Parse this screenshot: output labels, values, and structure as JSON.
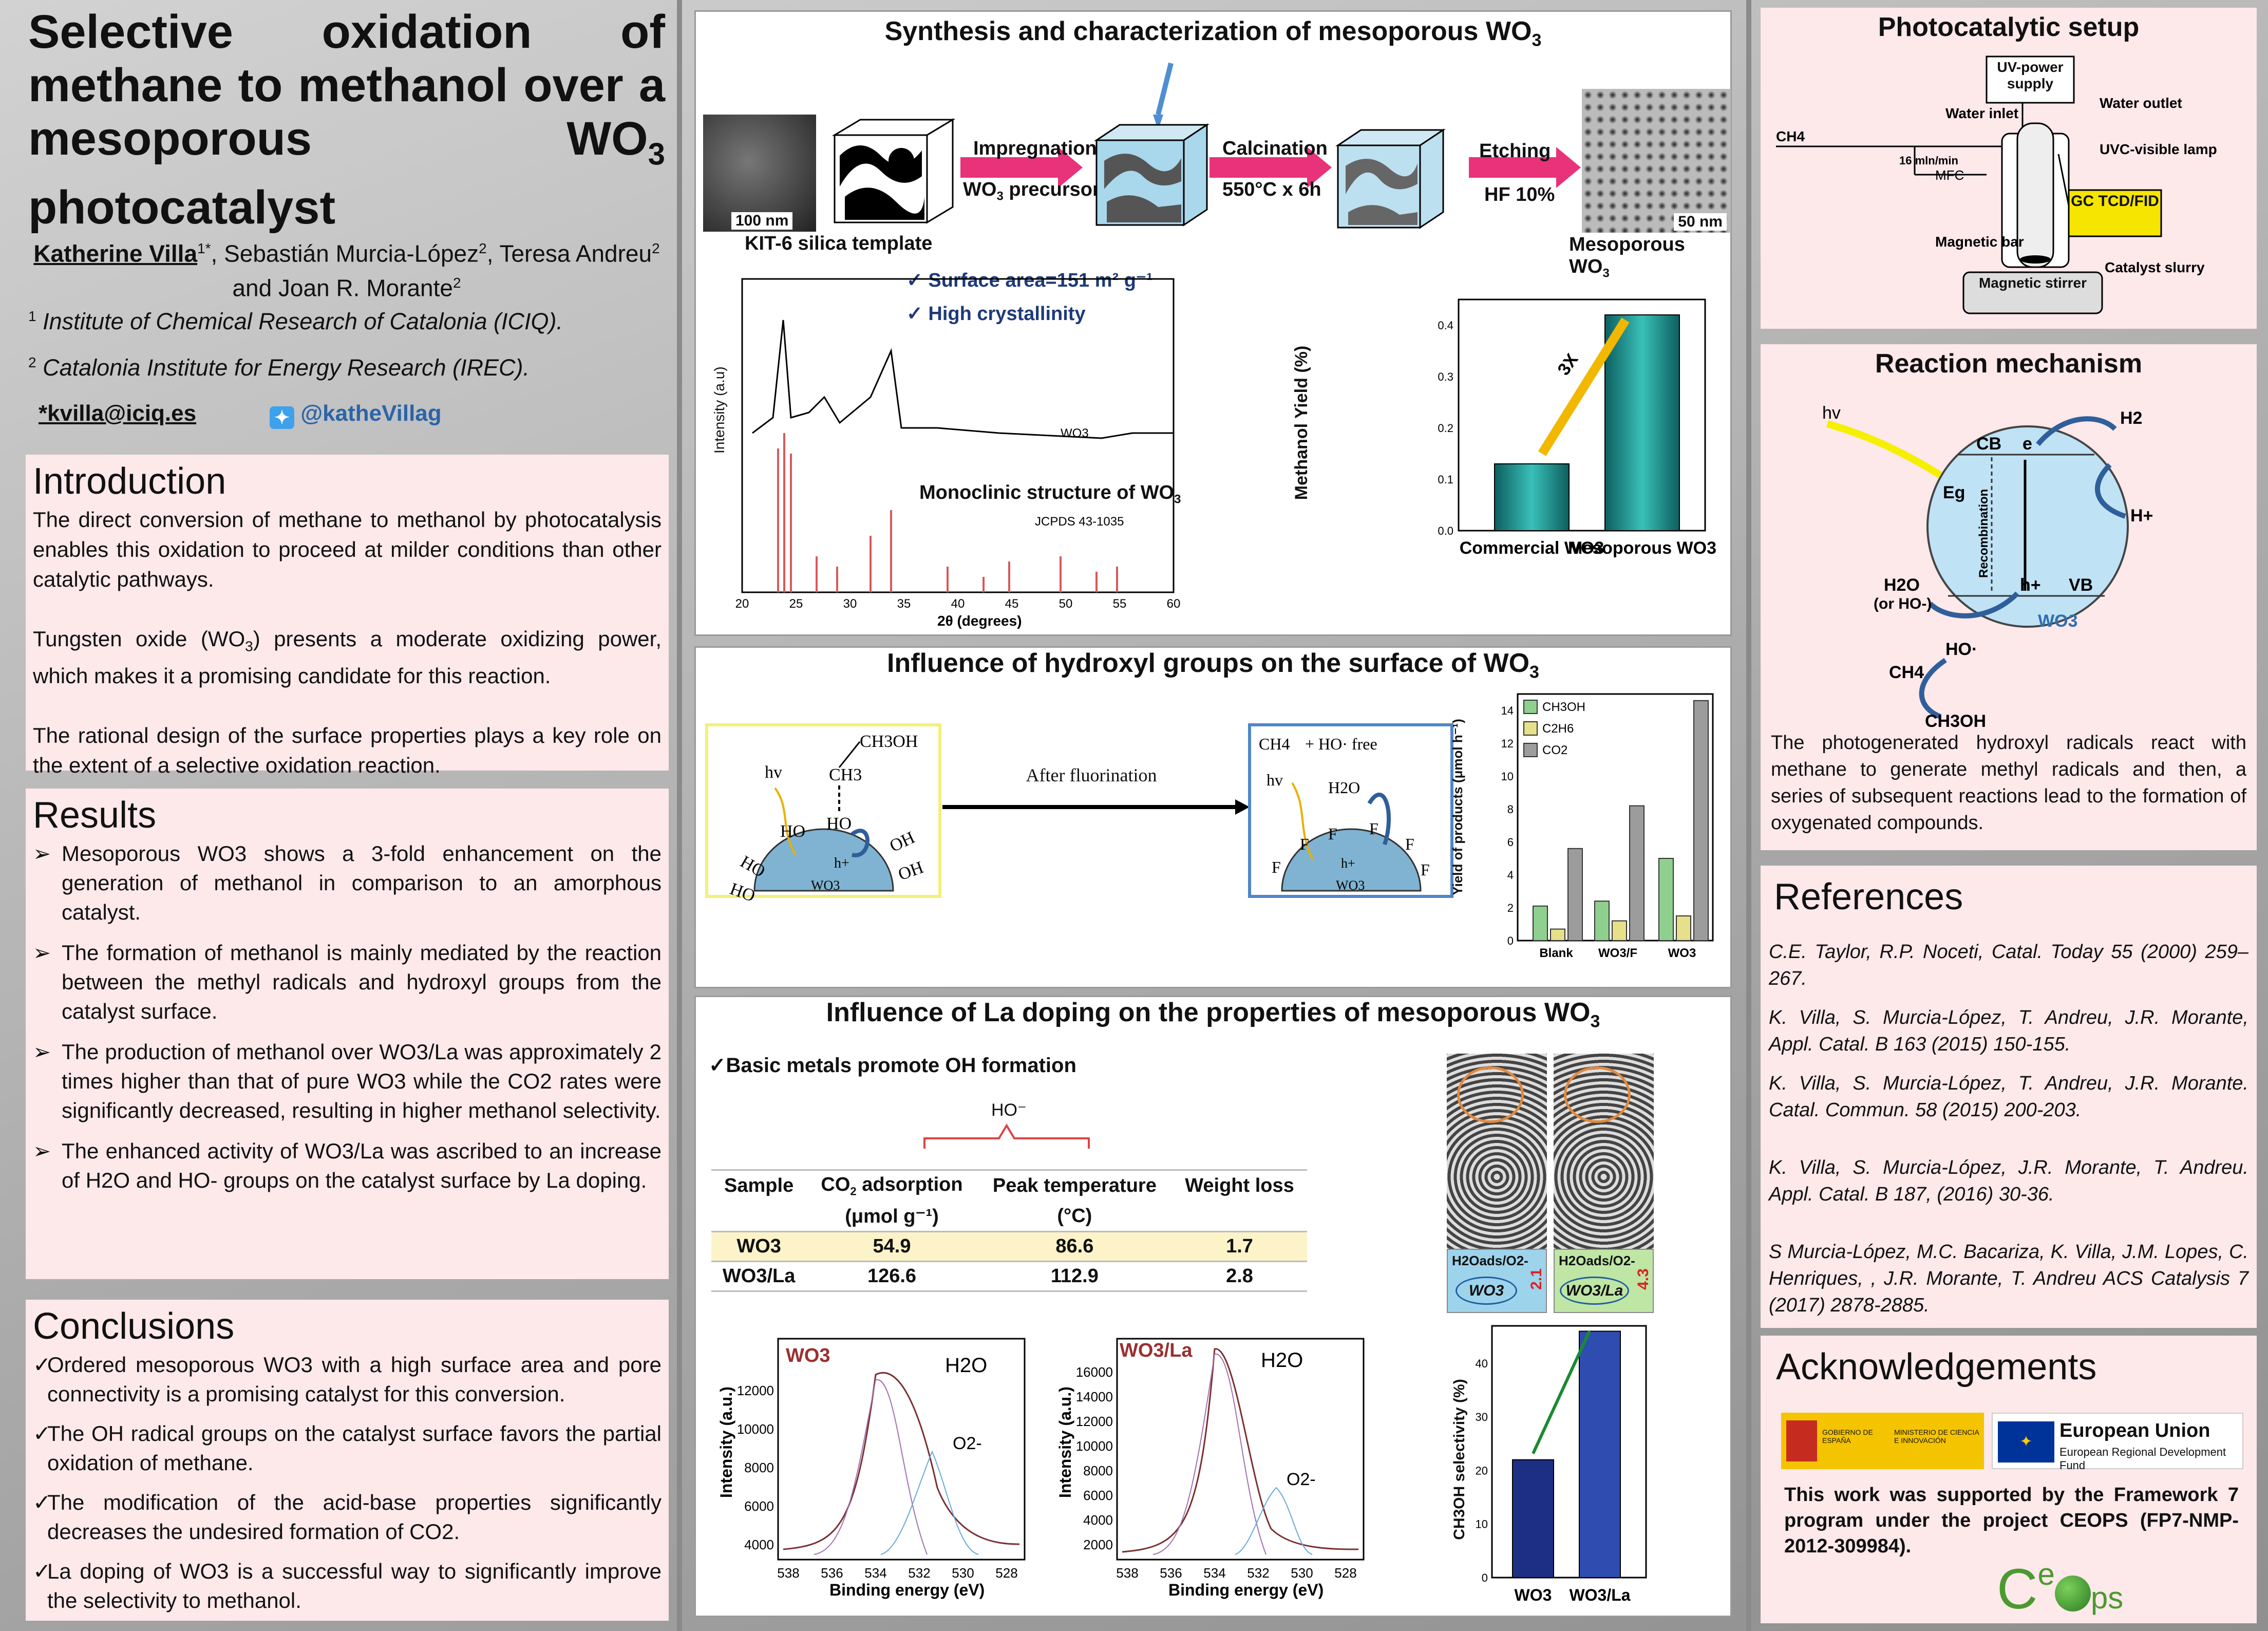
{
  "title": {
    "line1": "Selective oxidation of methane to methanol over a mesoporous WO",
    "sub": "3",
    "line2": " photocatalyst"
  },
  "authors": {
    "main": "Katherine Villa",
    "main_sup": "1*",
    "rest": ", Sebastián Murcia-López",
    "rest_sup": "2",
    "rest2": ", Teresa Andreu",
    "rest2_sup": "2",
    "rest3": " and Joan R. Morante",
    "rest3_sup": "2"
  },
  "affiliations": [
    {
      "num": "1",
      "text": "Institute of Chemical Research of Catalonia (ICIQ)."
    },
    {
      "num": "2",
      "text": "Catalonia Institute for Energy Research (IREC)."
    }
  ],
  "contact": {
    "email": "*kvilla@iciq.es",
    "twitter": "@katheVillag"
  },
  "introduction": {
    "heading": "Introduction",
    "p1": "The direct conversion of methane to methanol by photocatalysis enables this oxidation to proceed at milder conditions than other catalytic pathways.",
    "p2a": "Tungsten oxide (WO",
    "p2b": ") presents a moderate oxidizing power, which makes it a promising candidate for this reaction.",
    "p3": "The rational design of the surface properties plays a key role on the extent of a selective oxidation reaction."
  },
  "results": {
    "heading": "Results",
    "b1": "Mesoporous WO3 shows a 3-fold enhancement on the generation of methanol in comparison to an amorphous catalyst.",
    "b2": "The formation of methanol is mainly mediated by the reaction between the methyl radicals and hydroxyl groups from the catalyst surface.",
    "b3": "The production of methanol over WO3/La was approximately 2 times higher than that of pure WO3 while the CO2 rates were significantly decreased, resulting in higher methanol selectivity.",
    "b4": "The enhanced activity of WO3/La was ascribed to an increase of H2O and HO- groups on the catalyst surface by La doping."
  },
  "conclusions": {
    "heading": "Conclusions",
    "c1": "Ordered mesoporous WO3 with a high surface area and pore connectivity is a promising catalyst for this conversion.",
    "c2": "The OH radical groups on the catalyst surface favors the partial oxidation of methane.",
    "c3": "The modification of the acid-base properties significantly decreases the undesired formation of CO2.",
    "c4": "La doping of WO3 is a successful way to significantly improve the selectivity to methanol."
  },
  "synthesis": {
    "heading": "Synthesis and characterization of mesoporous WO",
    "heading_sub": "3",
    "template_label": "KIT-6 silica template",
    "scale_left": "100 nm",
    "scale_right": "50 nm",
    "step1_a": "Impregnation",
    "step1_b": "WO",
    "step1_c": " precursors",
    "step2_a": "Calcination",
    "step2_b": "550°C x 6h",
    "step3_a": "Etching",
    "step3_b": "HF 10%",
    "product_label": "Mesoporous WO",
    "surface": "Surface area=151 m² g⁻¹",
    "crystal": "High crystallinity",
    "xrd_label": "WO3",
    "mono": "Monoclinic structure of WO",
    "jcpds": "JCPDS 43-1035",
    "xrd_xlabel": "2θ (degrees)",
    "xrd_ylabel": "Intensity (a.u)",
    "xrd_ticks": [
      "20",
      "25",
      "30",
      "35",
      "40",
      "45",
      "50",
      "55",
      "60"
    ]
  },
  "chart_data": [
    {
      "type": "bar",
      "categories": [
        "Commercial WO3",
        "Mesoporous WO3"
      ],
      "values": [
        0.13,
        0.42
      ],
      "ylabel": "Methanol Yield (%)",
      "ylim": [
        0,
        0.45
      ],
      "yticks": [
        "0.0",
        "0.1",
        "0.2",
        "0.3",
        "0.4"
      ],
      "annotation": "3X"
    },
    {
      "type": "bar",
      "categories": [
        "Blank",
        "WO3/F",
        "WO3"
      ],
      "series": [
        {
          "name": "CH3OH",
          "values": [
            2.1,
            2.4,
            5.0
          ]
        },
        {
          "name": "C2H6",
          "values": [
            0.7,
            1.2,
            1.5
          ]
        },
        {
          "name": "CO2",
          "values": [
            5.6,
            8.2,
            14.6
          ]
        }
      ],
      "ylabel": "Yield of products (μmol h⁻¹)",
      "ylim": [
        0,
        15
      ],
      "yticks": [
        "0",
        "2",
        "4",
        "6",
        "8",
        "10",
        "12",
        "14"
      ]
    },
    {
      "type": "bar",
      "categories": [
        "WO3",
        "WO3/La"
      ],
      "values": [
        22,
        46
      ],
      "ylabel": "CH3OH selectivity (%)",
      "ylim": [
        0,
        47
      ],
      "yticks": [
        "0",
        "10",
        "20",
        "30",
        "40"
      ]
    }
  ],
  "hydroxyl": {
    "heading": "Influence of hydroxyl groups on the surface of WO",
    "heading_sub": "3",
    "after_fluor": "After fluorination",
    "hv": "hv",
    "ch3oh": "CH3OH",
    "ch3": "CH3",
    "ho": "HO",
    "h_plus": "h+",
    "oh": "OH",
    "wo3": "WO3",
    "ch4": "CH4",
    "ho_free": "+ HO· free",
    "h2o": "H2O",
    "f": "F"
  },
  "la": {
    "heading": "Influence of La doping on the properties of mesoporous WO",
    "heading_sub": "3",
    "basic": "Basic metals promote OH formation",
    "ho_minus": "HO⁻",
    "table_headers": [
      "Sample",
      "CO2 adsorption",
      "Peak temperature",
      "Weight loss"
    ],
    "table_units": [
      "",
      "(μmol g⁻¹)",
      "(°C)",
      ""
    ],
    "rows": [
      {
        "sample": "WO3",
        "co2": "54.9",
        "peak": "86.6",
        "loss": "1.7"
      },
      {
        "sample": "WO3/La",
        "co2": "126.6",
        "peak": "112.9",
        "loss": "2.8"
      }
    ],
    "xps1_title": "WO3",
    "xps2_title": "WO3/La",
    "h2o": "H2O",
    "o2": "O2-",
    "xps_xlabel": "Binding energy (eV)",
    "xps_ylabel": "Intensity (a.u.)",
    "xps_xticks": [
      "538",
      "536",
      "534",
      "532",
      "530",
      "528"
    ],
    "xps1_yticks": [
      "4000",
      "6000",
      "8000",
      "10000",
      "12000"
    ],
    "xps2_yticks": [
      "2000",
      "4000",
      "6000",
      "8000",
      "10000",
      "12000",
      "14000",
      "16000"
    ],
    "ratio1": "2.1",
    "ratio2": "4.3",
    "tem_label1": "H2Oads/O2-",
    "tem_cap1": "WO3",
    "tem_cap2": "WO3/La"
  },
  "setup": {
    "heading": "Photocatalytic setup",
    "uv": "UV-power supply",
    "water_in": "Water inlet",
    "water_out": "Water outlet",
    "ch4": "CH4",
    "flow": "16 mln/min",
    "mfc": "MFC",
    "uvc": "UVC-visible lamp",
    "gc": "GC TCD/FID",
    "magbar": "Magnetic bar",
    "slurry": "Catalyst slurry",
    "stirrer": "Magnetic stirrer"
  },
  "mechanism": {
    "heading": "Reaction mechanism",
    "hv": "hv",
    "cb": "CB",
    "e": "e",
    "h2": "H2",
    "hplus": "H+",
    "eg": "Eg",
    "recomb": "Recombination",
    "vb": "VB",
    "h": "h+",
    "h2o": "H2O",
    "or_ho": "(or HO-)",
    "wo3": "WO3",
    "ho_rad": "HO·",
    "ch4": "CH4",
    "ch3oh": "CH3OH",
    "text": "The photogenerated hydroxyl radicals react with methane to generate methyl radicals and then, a series of subsequent reactions lead to the formation of oxygenated compounds."
  },
  "references": {
    "heading": "References",
    "items": [
      "C.E. Taylor, R.P. Noceti, Catal. Today 55 (2000) 259–267.",
      "K. Villa, S. Murcia-López, T. Andreu, J.R. Morante, Appl. Catal. B 163 (2015) 150-155.",
      "K. Villa, S. Murcia-López, T. Andreu, J.R. Morante. Catal. Commun. 58 (2015) 200-203.",
      "K. Villa, S. Murcia-López, J.R. Morante, T. Andreu. Appl. Catal. B 187, (2016) 30-36.",
      "S Murcia-López, M.C. Bacariza, K. Villa, J.M. Lopes, C. Henriques, , J.R. Morante, T. Andreu ACS Catalysis 7 (2017) 2878-2885."
    ]
  },
  "ack": {
    "heading": "Acknowledgements",
    "ministry_a": "GOBIERNO DE ESPAÑA",
    "ministry_b": "MINISTERIO DE CIENCIA E INNOVACIÓN",
    "eu_a": "European Union",
    "eu_b": "European Regional Development Fund",
    "text": "This work was supported by the Framework 7 program under the project CEOPS (FP7-NMP-2012-309984).",
    "logo": "Ceops"
  }
}
